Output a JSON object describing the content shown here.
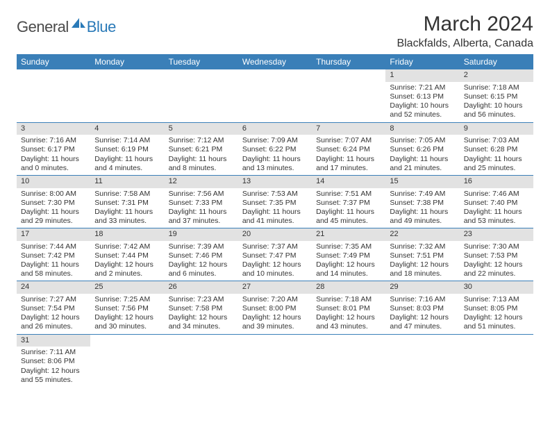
{
  "logo": {
    "textA": "General",
    "textB": "Blue"
  },
  "title": "March 2024",
  "location": "Blackfalds, Alberta, Canada",
  "colors": {
    "headerBg": "#3a7fb8",
    "headerText": "#ffffff",
    "dayNumBg": "#e2e2e2",
    "rowBorder": "#3a7fb8",
    "bodyText": "#333333",
    "logoBlue": "#2a7ab8"
  },
  "dayHeaders": [
    "Sunday",
    "Monday",
    "Tuesday",
    "Wednesday",
    "Thursday",
    "Friday",
    "Saturday"
  ],
  "weeks": [
    [
      {
        "empty": true
      },
      {
        "empty": true
      },
      {
        "empty": true
      },
      {
        "empty": true
      },
      {
        "empty": true
      },
      {
        "day": "1",
        "sunrise": "Sunrise: 7:21 AM",
        "sunset": "Sunset: 6:13 PM",
        "daylight1": "Daylight: 10 hours",
        "daylight2": "and 52 minutes."
      },
      {
        "day": "2",
        "sunrise": "Sunrise: 7:18 AM",
        "sunset": "Sunset: 6:15 PM",
        "daylight1": "Daylight: 10 hours",
        "daylight2": "and 56 minutes."
      }
    ],
    [
      {
        "day": "3",
        "sunrise": "Sunrise: 7:16 AM",
        "sunset": "Sunset: 6:17 PM",
        "daylight1": "Daylight: 11 hours",
        "daylight2": "and 0 minutes."
      },
      {
        "day": "4",
        "sunrise": "Sunrise: 7:14 AM",
        "sunset": "Sunset: 6:19 PM",
        "daylight1": "Daylight: 11 hours",
        "daylight2": "and 4 minutes."
      },
      {
        "day": "5",
        "sunrise": "Sunrise: 7:12 AM",
        "sunset": "Sunset: 6:21 PM",
        "daylight1": "Daylight: 11 hours",
        "daylight2": "and 8 minutes."
      },
      {
        "day": "6",
        "sunrise": "Sunrise: 7:09 AM",
        "sunset": "Sunset: 6:22 PM",
        "daylight1": "Daylight: 11 hours",
        "daylight2": "and 13 minutes."
      },
      {
        "day": "7",
        "sunrise": "Sunrise: 7:07 AM",
        "sunset": "Sunset: 6:24 PM",
        "daylight1": "Daylight: 11 hours",
        "daylight2": "and 17 minutes."
      },
      {
        "day": "8",
        "sunrise": "Sunrise: 7:05 AM",
        "sunset": "Sunset: 6:26 PM",
        "daylight1": "Daylight: 11 hours",
        "daylight2": "and 21 minutes."
      },
      {
        "day": "9",
        "sunrise": "Sunrise: 7:03 AM",
        "sunset": "Sunset: 6:28 PM",
        "daylight1": "Daylight: 11 hours",
        "daylight2": "and 25 minutes."
      }
    ],
    [
      {
        "day": "10",
        "sunrise": "Sunrise: 8:00 AM",
        "sunset": "Sunset: 7:30 PM",
        "daylight1": "Daylight: 11 hours",
        "daylight2": "and 29 minutes."
      },
      {
        "day": "11",
        "sunrise": "Sunrise: 7:58 AM",
        "sunset": "Sunset: 7:31 PM",
        "daylight1": "Daylight: 11 hours",
        "daylight2": "and 33 minutes."
      },
      {
        "day": "12",
        "sunrise": "Sunrise: 7:56 AM",
        "sunset": "Sunset: 7:33 PM",
        "daylight1": "Daylight: 11 hours",
        "daylight2": "and 37 minutes."
      },
      {
        "day": "13",
        "sunrise": "Sunrise: 7:53 AM",
        "sunset": "Sunset: 7:35 PM",
        "daylight1": "Daylight: 11 hours",
        "daylight2": "and 41 minutes."
      },
      {
        "day": "14",
        "sunrise": "Sunrise: 7:51 AM",
        "sunset": "Sunset: 7:37 PM",
        "daylight1": "Daylight: 11 hours",
        "daylight2": "and 45 minutes."
      },
      {
        "day": "15",
        "sunrise": "Sunrise: 7:49 AM",
        "sunset": "Sunset: 7:38 PM",
        "daylight1": "Daylight: 11 hours",
        "daylight2": "and 49 minutes."
      },
      {
        "day": "16",
        "sunrise": "Sunrise: 7:46 AM",
        "sunset": "Sunset: 7:40 PM",
        "daylight1": "Daylight: 11 hours",
        "daylight2": "and 53 minutes."
      }
    ],
    [
      {
        "day": "17",
        "sunrise": "Sunrise: 7:44 AM",
        "sunset": "Sunset: 7:42 PM",
        "daylight1": "Daylight: 11 hours",
        "daylight2": "and 58 minutes."
      },
      {
        "day": "18",
        "sunrise": "Sunrise: 7:42 AM",
        "sunset": "Sunset: 7:44 PM",
        "daylight1": "Daylight: 12 hours",
        "daylight2": "and 2 minutes."
      },
      {
        "day": "19",
        "sunrise": "Sunrise: 7:39 AM",
        "sunset": "Sunset: 7:46 PM",
        "daylight1": "Daylight: 12 hours",
        "daylight2": "and 6 minutes."
      },
      {
        "day": "20",
        "sunrise": "Sunrise: 7:37 AM",
        "sunset": "Sunset: 7:47 PM",
        "daylight1": "Daylight: 12 hours",
        "daylight2": "and 10 minutes."
      },
      {
        "day": "21",
        "sunrise": "Sunrise: 7:35 AM",
        "sunset": "Sunset: 7:49 PM",
        "daylight1": "Daylight: 12 hours",
        "daylight2": "and 14 minutes."
      },
      {
        "day": "22",
        "sunrise": "Sunrise: 7:32 AM",
        "sunset": "Sunset: 7:51 PM",
        "daylight1": "Daylight: 12 hours",
        "daylight2": "and 18 minutes."
      },
      {
        "day": "23",
        "sunrise": "Sunrise: 7:30 AM",
        "sunset": "Sunset: 7:53 PM",
        "daylight1": "Daylight: 12 hours",
        "daylight2": "and 22 minutes."
      }
    ],
    [
      {
        "day": "24",
        "sunrise": "Sunrise: 7:27 AM",
        "sunset": "Sunset: 7:54 PM",
        "daylight1": "Daylight: 12 hours",
        "daylight2": "and 26 minutes."
      },
      {
        "day": "25",
        "sunrise": "Sunrise: 7:25 AM",
        "sunset": "Sunset: 7:56 PM",
        "daylight1": "Daylight: 12 hours",
        "daylight2": "and 30 minutes."
      },
      {
        "day": "26",
        "sunrise": "Sunrise: 7:23 AM",
        "sunset": "Sunset: 7:58 PM",
        "daylight1": "Daylight: 12 hours",
        "daylight2": "and 34 minutes."
      },
      {
        "day": "27",
        "sunrise": "Sunrise: 7:20 AM",
        "sunset": "Sunset: 8:00 PM",
        "daylight1": "Daylight: 12 hours",
        "daylight2": "and 39 minutes."
      },
      {
        "day": "28",
        "sunrise": "Sunrise: 7:18 AM",
        "sunset": "Sunset: 8:01 PM",
        "daylight1": "Daylight: 12 hours",
        "daylight2": "and 43 minutes."
      },
      {
        "day": "29",
        "sunrise": "Sunrise: 7:16 AM",
        "sunset": "Sunset: 8:03 PM",
        "daylight1": "Daylight: 12 hours",
        "daylight2": "and 47 minutes."
      },
      {
        "day": "30",
        "sunrise": "Sunrise: 7:13 AM",
        "sunset": "Sunset: 8:05 PM",
        "daylight1": "Daylight: 12 hours",
        "daylight2": "and 51 minutes."
      }
    ],
    [
      {
        "day": "31",
        "sunrise": "Sunrise: 7:11 AM",
        "sunset": "Sunset: 8:06 PM",
        "daylight1": "Daylight: 12 hours",
        "daylight2": "and 55 minutes."
      },
      {
        "empty": true
      },
      {
        "empty": true
      },
      {
        "empty": true
      },
      {
        "empty": true
      },
      {
        "empty": true
      },
      {
        "empty": true
      }
    ]
  ]
}
